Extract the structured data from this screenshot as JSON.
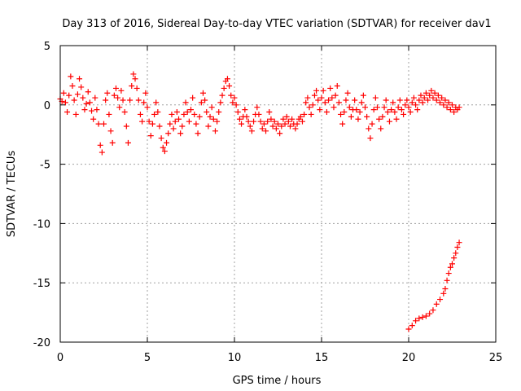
{
  "chart_data": {
    "type": "scatter",
    "title": "Day 313 of 2016, Sidereal Day-to-day VTEC variation (SDTVAR) for receiver dav1",
    "xlabel": "GPS time / hours",
    "ylabel": "SDTVAR / TECUs",
    "xlim": [
      0,
      25
    ],
    "ylim": [
      -20,
      5
    ],
    "xticks": [
      0,
      5,
      10,
      15,
      20,
      25
    ],
    "yticks": [
      5,
      0,
      -5,
      -10,
      -15,
      -20
    ],
    "grid": true,
    "marker": "+",
    "color": "#ff0000",
    "series": [
      {
        "name": "SDTVAR",
        "points": [
          [
            0.0,
            0.5
          ],
          [
            0.1,
            0.3
          ],
          [
            0.2,
            1.0
          ],
          [
            0.3,
            0.2
          ],
          [
            0.4,
            -0.6
          ],
          [
            0.5,
            0.8
          ],
          [
            0.6,
            2.4
          ],
          [
            0.7,
            1.6
          ],
          [
            0.8,
            0.4
          ],
          [
            0.9,
            -0.8
          ],
          [
            1.0,
            0.9
          ],
          [
            1.1,
            2.2
          ],
          [
            1.2,
            1.5
          ],
          [
            1.3,
            0.6
          ],
          [
            1.4,
            -0.4
          ],
          [
            1.5,
            0.1
          ],
          [
            1.6,
            1.1
          ],
          [
            1.7,
            0.2
          ],
          [
            1.8,
            -0.5
          ],
          [
            1.9,
            -1.2
          ],
          [
            2.0,
            0.6
          ],
          [
            2.1,
            -0.4
          ],
          [
            2.2,
            -1.6
          ],
          [
            2.3,
            -3.4
          ],
          [
            2.4,
            -4.0
          ],
          [
            2.5,
            -1.6
          ],
          [
            2.6,
            0.4
          ],
          [
            2.7,
            1.0
          ],
          [
            2.8,
            -0.8
          ],
          [
            2.9,
            -2.2
          ],
          [
            3.0,
            -3.2
          ],
          [
            3.1,
            0.8
          ],
          [
            3.2,
            1.4
          ],
          [
            3.3,
            0.6
          ],
          [
            3.4,
            -0.2
          ],
          [
            3.5,
            1.2
          ],
          [
            3.6,
            0.4
          ],
          [
            3.7,
            -0.6
          ],
          [
            3.8,
            -1.8
          ],
          [
            3.9,
            -3.2
          ],
          [
            4.0,
            0.4
          ],
          [
            4.1,
            1.6
          ],
          [
            4.2,
            2.6
          ],
          [
            4.3,
            2.2
          ],
          [
            4.4,
            1.4
          ],
          [
            4.5,
            0.4
          ],
          [
            4.6,
            -0.8
          ],
          [
            4.7,
            -1.4
          ],
          [
            4.8,
            0.2
          ],
          [
            4.9,
            1.0
          ],
          [
            5.0,
            -0.2
          ],
          [
            5.1,
            -1.4
          ],
          [
            5.2,
            -2.6
          ],
          [
            5.3,
            -1.6
          ],
          [
            5.4,
            -0.8
          ],
          [
            5.5,
            0.2
          ],
          [
            5.6,
            -0.6
          ],
          [
            5.7,
            -1.8
          ],
          [
            5.8,
            -2.8
          ],
          [
            5.9,
            -3.6
          ],
          [
            6.0,
            -3.9
          ],
          [
            6.1,
            -3.2
          ],
          [
            6.2,
            -2.4
          ],
          [
            6.3,
            -1.6
          ],
          [
            6.4,
            -0.8
          ],
          [
            6.5,
            -2.0
          ],
          [
            6.6,
            -1.4
          ],
          [
            6.7,
            -0.6
          ],
          [
            6.8,
            -1.2
          ],
          [
            6.9,
            -2.4
          ],
          [
            7.0,
            -1.8
          ],
          [
            7.1,
            -0.8
          ],
          [
            7.2,
            0.2
          ],
          [
            7.3,
            -0.6
          ],
          [
            7.4,
            -1.4
          ],
          [
            7.5,
            -0.4
          ],
          [
            7.6,
            0.6
          ],
          [
            7.7,
            -0.8
          ],
          [
            7.8,
            -1.6
          ],
          [
            7.9,
            -2.4
          ],
          [
            8.0,
            -1.0
          ],
          [
            8.1,
            0.2
          ],
          [
            8.2,
            1.0
          ],
          [
            8.3,
            0.4
          ],
          [
            8.4,
            -0.6
          ],
          [
            8.5,
            -1.8
          ],
          [
            8.6,
            -1.0
          ],
          [
            8.7,
            -0.2
          ],
          [
            8.8,
            -1.2
          ],
          [
            8.9,
            -2.2
          ],
          [
            9.0,
            -1.4
          ],
          [
            9.1,
            -0.6
          ],
          [
            9.2,
            0.2
          ],
          [
            9.3,
            0.8
          ],
          [
            9.4,
            1.4
          ],
          [
            9.5,
            2.0
          ],
          [
            9.6,
            2.2
          ],
          [
            9.7,
            1.6
          ],
          [
            9.8,
            0.8
          ],
          [
            9.9,
            0.2
          ],
          [
            10.0,
            0.6
          ],
          [
            10.1,
            0.0
          ],
          [
            10.2,
            -0.6
          ],
          [
            10.3,
            -1.2
          ],
          [
            10.4,
            -1.6
          ],
          [
            10.5,
            -1.0
          ],
          [
            10.6,
            -0.4
          ],
          [
            10.7,
            -1.0
          ],
          [
            10.8,
            -1.4
          ],
          [
            10.9,
            -1.8
          ],
          [
            11.0,
            -2.2
          ],
          [
            11.1,
            -1.4
          ],
          [
            11.2,
            -0.8
          ],
          [
            11.3,
            -0.2
          ],
          [
            11.4,
            -0.8
          ],
          [
            11.5,
            -1.4
          ],
          [
            11.6,
            -2.0
          ],
          [
            11.7,
            -1.6
          ],
          [
            11.8,
            -2.2
          ],
          [
            11.9,
            -1.4
          ],
          [
            12.0,
            -0.6
          ],
          [
            12.1,
            -1.2
          ],
          [
            12.2,
            -1.8
          ],
          [
            12.3,
            -1.4
          ],
          [
            12.4,
            -2.0
          ],
          [
            12.5,
            -1.6
          ],
          [
            12.6,
            -2.4
          ],
          [
            12.7,
            -1.8
          ],
          [
            12.8,
            -1.2
          ],
          [
            12.9,
            -1.6
          ],
          [
            13.0,
            -1.0
          ],
          [
            13.1,
            -1.4
          ],
          [
            13.2,
            -1.8
          ],
          [
            13.3,
            -1.2
          ],
          [
            13.4,
            -1.6
          ],
          [
            13.5,
            -2.0
          ],
          [
            13.6,
            -1.6
          ],
          [
            13.7,
            -1.2
          ],
          [
            13.8,
            -1.0
          ],
          [
            13.9,
            -1.4
          ],
          [
            14.0,
            -0.8
          ],
          [
            14.1,
            0.2
          ],
          [
            14.2,
            0.6
          ],
          [
            14.3,
            -0.2
          ],
          [
            14.4,
            -0.8
          ],
          [
            14.5,
            0.0
          ],
          [
            14.6,
            0.8
          ],
          [
            14.7,
            1.2
          ],
          [
            14.8,
            0.4
          ],
          [
            14.9,
            -0.4
          ],
          [
            15.0,
            0.6
          ],
          [
            15.1,
            1.2
          ],
          [
            15.2,
            0.2
          ],
          [
            15.3,
            -0.6
          ],
          [
            15.4,
            0.4
          ],
          [
            15.5,
            1.4
          ],
          [
            15.6,
            0.6
          ],
          [
            15.7,
            -0.2
          ],
          [
            15.8,
            0.8
          ],
          [
            15.9,
            1.6
          ],
          [
            16.0,
            0.2
          ],
          [
            16.1,
            -0.8
          ],
          [
            16.2,
            -1.6
          ],
          [
            16.3,
            -0.6
          ],
          [
            16.4,
            0.4
          ],
          [
            16.5,
            1.0
          ],
          [
            16.6,
            -0.2
          ],
          [
            16.7,
            -1.0
          ],
          [
            16.8,
            -0.4
          ],
          [
            16.9,
            0.4
          ],
          [
            17.0,
            -0.4
          ],
          [
            17.1,
            -1.2
          ],
          [
            17.2,
            -0.6
          ],
          [
            17.3,
            0.2
          ],
          [
            17.4,
            0.8
          ],
          [
            17.5,
            -0.2
          ],
          [
            17.6,
            -1.0
          ],
          [
            17.7,
            -2.0
          ],
          [
            17.8,
            -2.8
          ],
          [
            17.9,
            -1.6
          ],
          [
            18.0,
            -0.4
          ],
          [
            18.1,
            0.6
          ],
          [
            18.2,
            -0.2
          ],
          [
            18.3,
            -1.2
          ],
          [
            18.4,
            -2.0
          ],
          [
            18.5,
            -1.0
          ],
          [
            18.6,
            -0.2
          ],
          [
            18.7,
            0.4
          ],
          [
            18.8,
            -0.6
          ],
          [
            18.9,
            -1.4
          ],
          [
            19.0,
            -0.4
          ],
          [
            19.1,
            0.2
          ],
          [
            19.2,
            -0.6
          ],
          [
            19.3,
            -1.2
          ],
          [
            19.4,
            -0.2
          ],
          [
            19.5,
            0.4
          ],
          [
            19.6,
            -0.4
          ],
          [
            19.7,
            -0.8
          ],
          [
            19.8,
            0.0
          ],
          [
            19.9,
            0.4
          ],
          [
            20.0,
            -0.2
          ],
          [
            20.1,
            -0.6
          ],
          [
            20.2,
            0.2
          ],
          [
            20.3,
            0.6
          ],
          [
            20.4,
            0.0
          ],
          [
            20.5,
            -0.4
          ],
          [
            20.6,
            0.4
          ],
          [
            20.7,
            0.8
          ],
          [
            20.8,
            0.2
          ],
          [
            20.9,
            0.6
          ],
          [
            21.0,
            1.0
          ],
          [
            21.1,
            0.4
          ],
          [
            21.2,
            0.8
          ],
          [
            21.3,
            1.2
          ],
          [
            21.4,
            0.6
          ],
          [
            21.5,
            1.0
          ],
          [
            21.6,
            0.4
          ],
          [
            21.7,
            0.8
          ],
          [
            21.8,
            0.2
          ],
          [
            21.9,
            0.6
          ],
          [
            22.0,
            0.0
          ],
          [
            22.1,
            0.4
          ],
          [
            22.2,
            -0.2
          ],
          [
            22.3,
            0.2
          ],
          [
            22.4,
            -0.4
          ],
          [
            22.5,
            0.0
          ],
          [
            22.6,
            -0.6
          ],
          [
            22.7,
            -0.2
          ],
          [
            22.8,
            -0.4
          ],
          [
            22.9,
            -0.2
          ],
          [
            20.0,
            -18.9
          ],
          [
            20.2,
            -18.6
          ],
          [
            20.4,
            -18.2
          ],
          [
            20.6,
            -18.0
          ],
          [
            20.8,
            -17.9
          ],
          [
            21.0,
            -17.8
          ],
          [
            21.2,
            -17.6
          ],
          [
            21.4,
            -17.3
          ],
          [
            21.6,
            -16.8
          ],
          [
            21.8,
            -16.4
          ],
          [
            22.0,
            -15.9
          ],
          [
            22.1,
            -15.5
          ],
          [
            22.2,
            -14.8
          ],
          [
            22.3,
            -14.2
          ],
          [
            22.4,
            -13.7
          ],
          [
            22.5,
            -13.4
          ],
          [
            22.6,
            -12.9
          ],
          [
            22.7,
            -12.5
          ],
          [
            22.8,
            -12.0
          ],
          [
            22.9,
            -11.6
          ]
        ]
      }
    ]
  }
}
